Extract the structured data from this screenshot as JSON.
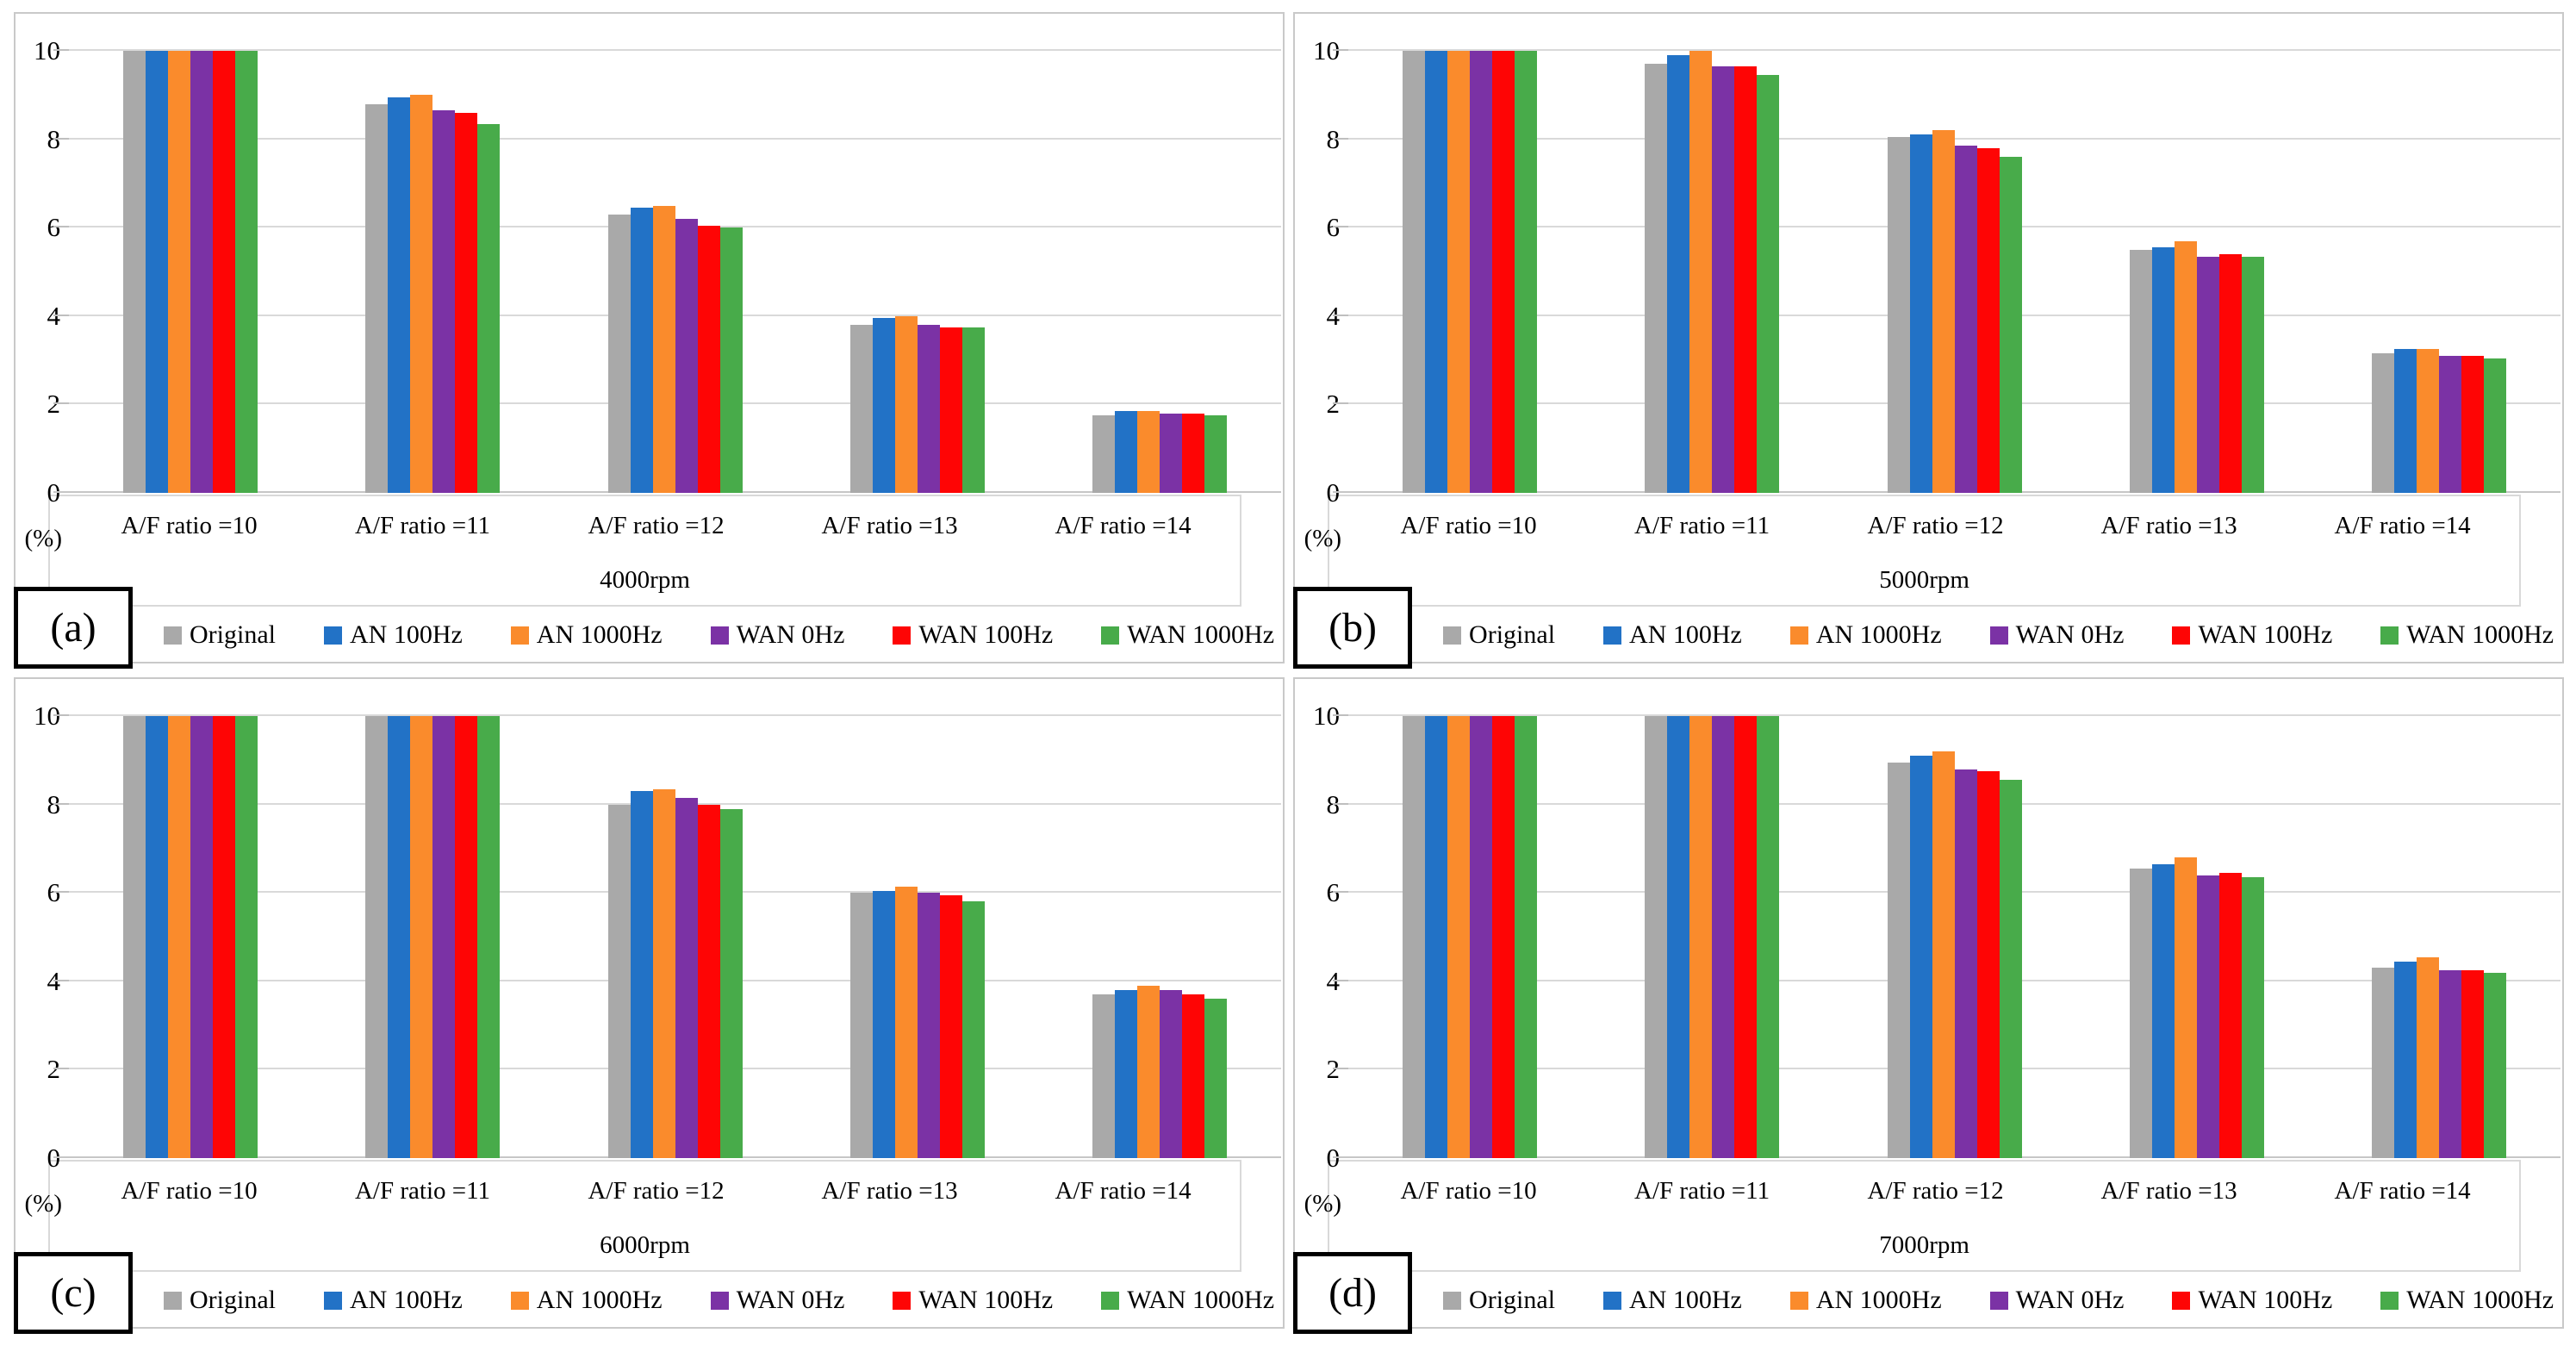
{
  "figure": {
    "y_axis_unit_label": "(%)",
    "y_ticks": [
      10,
      8,
      6,
      4,
      2,
      0
    ],
    "categories": [
      "A/F ratio =10",
      "A/F ratio =11",
      "A/F ratio =12",
      "A/F ratio =13",
      "A/F ratio =14"
    ],
    "series_labels": [
      "Original",
      "AN 100Hz",
      "AN 1000Hz",
      "WAN 0Hz",
      "WAN 100Hz",
      "WAN 1000Hz"
    ],
    "series_colors": [
      "#A9A9A9",
      "#2272C6",
      "#FA8B2C",
      "#7B32A5",
      "#FE0505",
      "#48AB4A"
    ],
    "gridline_color": "#d9d9d9"
  },
  "chart_data": [
    {
      "type": "bar",
      "panel_label": "(a)",
      "title": "4000rpm",
      "xlabel": "4000rpm",
      "ylabel": "(%)",
      "ylim": [
        0,
        10
      ],
      "grid": true,
      "legend_position": "bottom",
      "categories": [
        "A/F ratio =10",
        "A/F ratio =11",
        "A/F ratio =12",
        "A/F ratio =13",
        "A/F ratio =14"
      ],
      "series": [
        {
          "name": "Original",
          "color": "#A9A9A9",
          "values": [
            10,
            8.8,
            6.3,
            3.8,
            1.75
          ]
        },
        {
          "name": "AN 100Hz",
          "color": "#2272C6",
          "values": [
            10,
            8.95,
            6.45,
            3.95,
            1.85
          ]
        },
        {
          "name": "AN 1000Hz",
          "color": "#FA8B2C",
          "values": [
            10,
            9.0,
            6.5,
            4.0,
            1.85
          ]
        },
        {
          "name": "WAN 0Hz",
          "color": "#7B32A5",
          "values": [
            10,
            8.65,
            6.2,
            3.8,
            1.8
          ]
        },
        {
          "name": "WAN 100Hz",
          "color": "#FE0505",
          "values": [
            10,
            8.6,
            6.05,
            3.75,
            1.8
          ]
        },
        {
          "name": "WAN 1000Hz",
          "color": "#48AB4A",
          "values": [
            10,
            8.35,
            6.0,
            3.75,
            1.75
          ]
        }
      ]
    },
    {
      "type": "bar",
      "panel_label": "(b)",
      "title": "5000rpm",
      "xlabel": "5000rpm",
      "ylabel": "(%)",
      "ylim": [
        0,
        10
      ],
      "grid": true,
      "legend_position": "bottom",
      "categories": [
        "A/F ratio =10",
        "A/F ratio =11",
        "A/F ratio =12",
        "A/F ratio =13",
        "A/F ratio =14"
      ],
      "series": [
        {
          "name": "Original",
          "color": "#A9A9A9",
          "values": [
            10,
            9.7,
            8.05,
            5.5,
            3.15
          ]
        },
        {
          "name": "AN 100Hz",
          "color": "#2272C6",
          "values": [
            10,
            9.9,
            8.1,
            5.55,
            3.25
          ]
        },
        {
          "name": "AN 1000Hz",
          "color": "#FA8B2C",
          "values": [
            10,
            10,
            8.2,
            5.7,
            3.25
          ]
        },
        {
          "name": "WAN 0Hz",
          "color": "#7B32A5",
          "values": [
            10,
            9.65,
            7.85,
            5.35,
            3.1
          ]
        },
        {
          "name": "WAN 100Hz",
          "color": "#FE0505",
          "values": [
            10,
            9.65,
            7.8,
            5.4,
            3.1
          ]
        },
        {
          "name": "WAN 1000Hz",
          "color": "#48AB4A",
          "values": [
            10,
            9.45,
            7.6,
            5.35,
            3.05
          ]
        }
      ]
    },
    {
      "type": "bar",
      "panel_label": "(c)",
      "title": "6000rpm",
      "xlabel": "6000rpm",
      "ylabel": "(%)",
      "ylim": [
        0,
        10
      ],
      "grid": true,
      "legend_position": "bottom",
      "categories": [
        "A/F ratio =10",
        "A/F ratio =11",
        "A/F ratio =12",
        "A/F ratio =13",
        "A/F ratio =14"
      ],
      "series": [
        {
          "name": "Original",
          "color": "#A9A9A9",
          "values": [
            10,
            10,
            8.0,
            6.0,
            3.7
          ]
        },
        {
          "name": "AN 100Hz",
          "color": "#2272C6",
          "values": [
            10,
            10,
            8.3,
            6.05,
            3.8
          ]
        },
        {
          "name": "AN 1000Hz",
          "color": "#FA8B2C",
          "values": [
            10,
            10,
            8.35,
            6.15,
            3.9
          ]
        },
        {
          "name": "WAN 0Hz",
          "color": "#7B32A5",
          "values": [
            10,
            10,
            8.15,
            6.0,
            3.8
          ]
        },
        {
          "name": "WAN 100Hz",
          "color": "#FE0505",
          "values": [
            10,
            10,
            8.0,
            5.95,
            3.7
          ]
        },
        {
          "name": "WAN 1000Hz",
          "color": "#48AB4A",
          "values": [
            10,
            10,
            7.9,
            5.8,
            3.6
          ]
        }
      ]
    },
    {
      "type": "bar",
      "panel_label": "(d)",
      "title": "7000rpm",
      "xlabel": "7000rpm",
      "ylabel": "(%)",
      "ylim": [
        0,
        10
      ],
      "grid": true,
      "legend_position": "bottom",
      "categories": [
        "A/F ratio =10",
        "A/F ratio =11",
        "A/F ratio =12",
        "A/F ratio =13",
        "A/F ratio =14"
      ],
      "series": [
        {
          "name": "Original",
          "color": "#A9A9A9",
          "values": [
            10,
            10,
            8.95,
            6.55,
            4.3
          ]
        },
        {
          "name": "AN 100Hz",
          "color": "#2272C6",
          "values": [
            10,
            10,
            9.1,
            6.65,
            4.45
          ]
        },
        {
          "name": "AN 1000Hz",
          "color": "#FA8B2C",
          "values": [
            10,
            10,
            9.2,
            6.8,
            4.55
          ]
        },
        {
          "name": "WAN 0Hz",
          "color": "#7B32A5",
          "values": [
            10,
            10,
            8.8,
            6.4,
            4.25
          ]
        },
        {
          "name": "WAN 100Hz",
          "color": "#FE0505",
          "values": [
            10,
            10,
            8.75,
            6.45,
            4.25
          ]
        },
        {
          "name": "WAN 1000Hz",
          "color": "#48AB4A",
          "values": [
            10,
            10,
            8.55,
            6.35,
            4.2
          ]
        }
      ]
    }
  ]
}
